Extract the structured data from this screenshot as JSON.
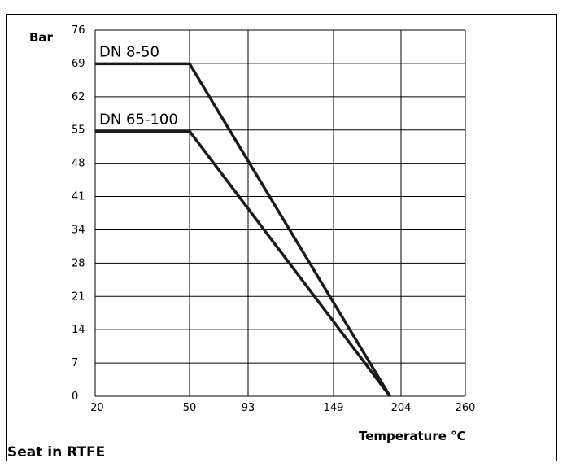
{
  "chart_data": {
    "type": "line",
    "ylabel": "Bar",
    "xlabel": "Temperature °C",
    "footer": "Seat in RTFE",
    "x_ticks": [
      "-20",
      "50",
      "93",
      "149",
      "204",
      "260"
    ],
    "y_ticks": [
      "0",
      "7",
      "14",
      "21",
      "28",
      "34",
      "41",
      "48",
      "55",
      "62",
      "69",
      "76"
    ],
    "xlim": [
      -20,
      260
    ],
    "ylim": [
      0,
      76
    ],
    "grid": true,
    "series": [
      {
        "name": "DN 8-50",
        "x": [
          -20,
          50,
          195
        ],
        "y": [
          69,
          69,
          0
        ]
      },
      {
        "name": "DN 65-100",
        "x": [
          -20,
          50,
          195
        ],
        "y": [
          55,
          55,
          0
        ]
      }
    ]
  }
}
